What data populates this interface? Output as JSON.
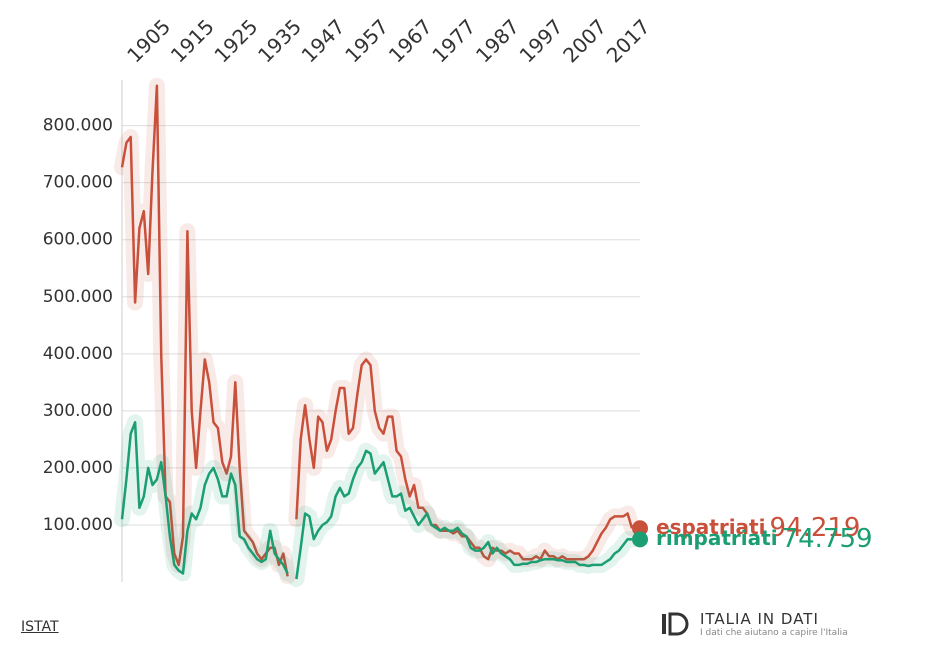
{
  "chart_data": {
    "type": "line",
    "categories": [
      null,
      null,
      null,
      null,
      null,
      "1905",
      null,
      null,
      null,
      null,
      null,
      null,
      null,
      null,
      null,
      "1915",
      null,
      null,
      null,
      null,
      null,
      null,
      null,
      null,
      null,
      "1925",
      null,
      null,
      null,
      null,
      null,
      null,
      null,
      null,
      null,
      "1935",
      null,
      null,
      null,
      null,
      null,
      null,
      null,
      null,
      null,
      "1947",
      null,
      null,
      null,
      null,
      null,
      null,
      null,
      null,
      null,
      "1957",
      null,
      null,
      null,
      null,
      null,
      null,
      null,
      null,
      null,
      "1967",
      null,
      null,
      null,
      null,
      null,
      null,
      null,
      null,
      null,
      "1977",
      null,
      null,
      null,
      null,
      null,
      null,
      null,
      null,
      null,
      "1987",
      null,
      null,
      null,
      null,
      null,
      null,
      null,
      null,
      null,
      "1997",
      null,
      null,
      null,
      null,
      null,
      null,
      null,
      null,
      null,
      "2007",
      null,
      null,
      null,
      null,
      null,
      null,
      null,
      null,
      null,
      "2017",
      null,
      null
    ],
    "series": [
      {
        "name": "espatriati",
        "color": "#c9503b",
        "last_label": "94.219",
        "values": [
          727000,
          770000,
          780000,
          490000,
          620000,
          650000,
          540000,
          720000,
          870000,
          400000,
          150000,
          140000,
          50000,
          30000,
          80000,
          615000,
          300000,
          200000,
          300000,
          390000,
          350000,
          280000,
          270000,
          210000,
          190000,
          220000,
          350000,
          200000,
          90000,
          80000,
          70000,
          50000,
          40000,
          50000,
          60000,
          60000,
          30000,
          50000,
          10000,
          null,
          110000,
          250000,
          310000,
          250000,
          200000,
          290000,
          280000,
          230000,
          250000,
          300000,
          340000,
          340000,
          260000,
          270000,
          330000,
          380000,
          390000,
          380000,
          300000,
          270000,
          260000,
          290000,
          290000,
          230000,
          220000,
          180000,
          150000,
          170000,
          130000,
          130000,
          120000,
          100000,
          100000,
          90000,
          90000,
          90000,
          85000,
          90000,
          80000,
          80000,
          70000,
          60000,
          60000,
          45000,
          40000,
          60000,
          55000,
          55000,
          50000,
          55000,
          50000,
          50000,
          40000,
          40000,
          40000,
          45000,
          40000,
          55000,
          45000,
          45000,
          40000,
          45000,
          40000,
          40000,
          40000,
          40000,
          40000,
          45000,
          55000,
          70000,
          85000,
          95000,
          110000,
          115000,
          115000,
          115000,
          120000,
          94219
        ]
      },
      {
        "name": "rimpatriati",
        "color": "#1a9e72",
        "last_label": "74.759",
        "values": [
          110000,
          180000,
          260000,
          280000,
          130000,
          150000,
          200000,
          170000,
          180000,
          210000,
          150000,
          80000,
          30000,
          20000,
          15000,
          90000,
          120000,
          110000,
          130000,
          170000,
          190000,
          200000,
          180000,
          150000,
          150000,
          190000,
          170000,
          80000,
          75000,
          60000,
          50000,
          40000,
          35000,
          40000,
          90000,
          50000,
          40000,
          30000,
          15000,
          null,
          5000,
          60000,
          120000,
          115000,
          75000,
          90000,
          100000,
          105000,
          115000,
          150000,
          165000,
          150000,
          155000,
          180000,
          200000,
          210000,
          230000,
          225000,
          190000,
          200000,
          210000,
          180000,
          150000,
          150000,
          155000,
          125000,
          130000,
          115000,
          100000,
          110000,
          120000,
          100000,
          95000,
          90000,
          95000,
          90000,
          90000,
          95000,
          85000,
          80000,
          60000,
          55000,
          55000,
          60000,
          70000,
          50000,
          60000,
          50000,
          45000,
          40000,
          30000,
          30000,
          32000,
          32000,
          35000,
          35000,
          38000,
          40000,
          40000,
          40000,
          38000,
          38000,
          35000,
          35000,
          35000,
          30000,
          30000,
          28000,
          30000,
          30000,
          30000,
          35000,
          40000,
          50000,
          55000,
          65000,
          75000,
          74759
        ]
      }
    ],
    "ylim": [
      0,
      880000
    ],
    "yticks": [
      {
        "value": 100000,
        "label": "100.000"
      },
      {
        "value": 200000,
        "label": "200.000"
      },
      {
        "value": 300000,
        "label": "300.000"
      },
      {
        "value": 400000,
        "label": "400.000"
      },
      {
        "value": 500000,
        "label": "500.000"
      },
      {
        "value": 600000,
        "label": "600.000"
      },
      {
        "value": 700000,
        "label": "700.000"
      },
      {
        "value": 800000,
        "label": "800.000"
      }
    ],
    "grid": true
  },
  "source": "ISTAT",
  "logo": {
    "title": "ITALIA IN DATI",
    "tagline": "I dati che aiutano a capire l'Italia"
  }
}
